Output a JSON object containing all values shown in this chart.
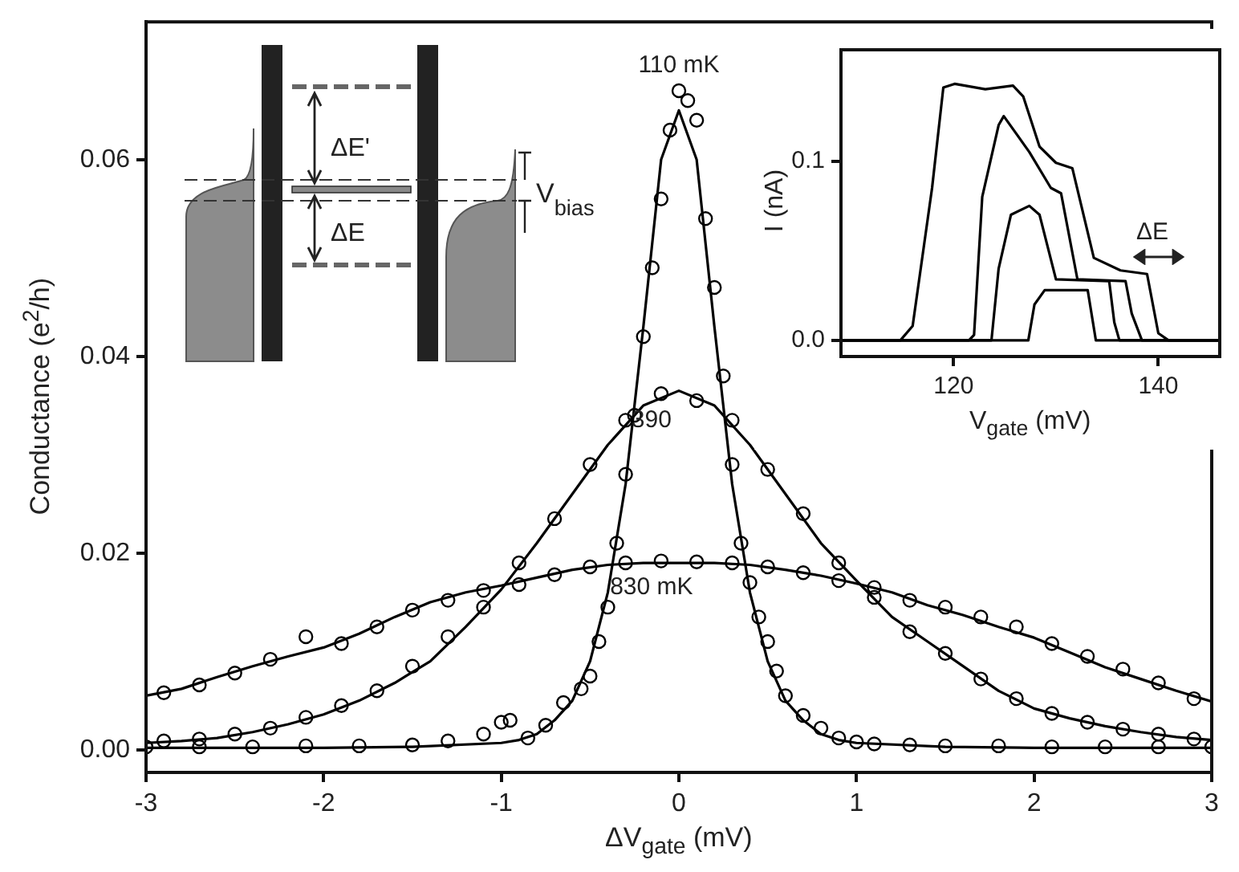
{
  "chart_data": [
    {
      "type": "scatter",
      "xlabel": "ΔV$_{gate}$ (mV)",
      "ylabel": "Conductance (e$^{2}$/h)",
      "xlim": [
        -3,
        3
      ],
      "ylim": [
        -0.0023,
        0.074
      ],
      "xticks": [
        -3,
        -2,
        -1,
        0,
        1,
        2,
        3
      ],
      "yticks": [
        {
          "value": 0,
          "label": "0.00"
        },
        0.02,
        0.04,
        0.06
      ],
      "marker": "circle",
      "line_style": "solid",
      "annotations": [
        "ΔE'",
        "ΔE",
        "V$_{bias}$"
      ],
      "series": [
        {
          "name": "110 mK",
          "type": "scatter",
          "color": "#000000",
          "x": [
            -3,
            -2.7,
            -2.4,
            -2.1,
            -1.8,
            -1.5,
            -1.3,
            -1.1,
            -1,
            -0.95,
            -0.85,
            -0.75,
            -0.65,
            -0.55,
            -0.5,
            -0.45,
            -0.4,
            -0.35,
            -0.3,
            -0.25,
            -0.2,
            -0.15,
            -0.1,
            -0.05,
            0,
            0.05,
            0.1,
            0.15,
            0.2,
            0.25,
            0.3,
            0.35,
            0.4,
            0.45,
            0.5,
            0.55,
            0.6,
            0.7,
            0.8,
            0.9,
            1.0,
            1.1,
            1.3,
            1.5,
            1.8,
            2.1,
            2.4,
            2.7,
            3
          ],
          "values": [
            0.0003,
            0.0003,
            0.0003,
            0.0004,
            0.0004,
            0.0005,
            0.0009,
            0.0016,
            0.0028,
            0.003,
            0.0012,
            0.0025,
            0.0048,
            0.0062,
            0.0075,
            0.011,
            0.0145,
            0.021,
            0.028,
            0.034,
            0.042,
            0.049,
            0.056,
            0.063,
            0.067,
            0.066,
            0.064,
            0.054,
            0.047,
            0.038,
            0.029,
            0.021,
            0.017,
            0.0135,
            0.011,
            0.008,
            0.0055,
            0.0035,
            0.0022,
            0.0012,
            0.0008,
            0.0006,
            0.0005,
            0.0004,
            0.0004,
            0.0003,
            0.0003,
            0.0003,
            0.0003
          ]
        },
        {
          "name": "390",
          "type": "scatter",
          "color": "#000000",
          "x": [
            -2.9,
            -2.7,
            -2.5,
            -2.3,
            -2.1,
            -1.9,
            -1.7,
            -1.5,
            -1.3,
            -1.1,
            -0.9,
            -0.7,
            -0.5,
            -0.3,
            -0.1,
            0.1,
            0.3,
            0.5,
            0.7,
            0.9,
            1.1,
            1.3,
            1.5,
            1.7,
            1.9,
            2.1,
            2.3,
            2.5,
            2.7,
            2.9
          ],
          "values": [
            0.0009,
            0.0011,
            0.0016,
            0.0022,
            0.0033,
            0.0045,
            0.006,
            0.0085,
            0.0115,
            0.0145,
            0.019,
            0.0235,
            0.029,
            0.0335,
            0.0362,
            0.0355,
            0.0335,
            0.0285,
            0.024,
            0.019,
            0.0155,
            0.012,
            0.0098,
            0.0072,
            0.0052,
            0.0037,
            0.0028,
            0.0021,
            0.0016,
            0.0011
          ]
        },
        {
          "name": "830 mK",
          "type": "scatter",
          "color": "#000000",
          "x": [
            -2.9,
            -2.7,
            -2.5,
            -2.3,
            -2.1,
            -1.9,
            -1.7,
            -1.5,
            -1.3,
            -1.1,
            -0.9,
            -0.7,
            -0.5,
            -0.3,
            -0.1,
            0.1,
            0.3,
            0.5,
            0.7,
            0.9,
            1.1,
            1.3,
            1.5,
            1.7,
            1.9,
            2.1,
            2.3,
            2.5,
            2.7,
            2.9
          ],
          "values": [
            0.0058,
            0.0066,
            0.0078,
            0.0092,
            0.0115,
            0.0108,
            0.0125,
            0.0142,
            0.0152,
            0.0162,
            0.0168,
            0.0178,
            0.0186,
            0.019,
            0.0192,
            0.0191,
            0.019,
            0.0186,
            0.018,
            0.0172,
            0.0165,
            0.0152,
            0.0145,
            0.0135,
            0.0125,
            0.0108,
            0.0095,
            0.0082,
            0.0068,
            0.0052
          ]
        },
        {
          "type": "line",
          "marker": "none",
          "color": "#000000",
          "x": [
            -3,
            -2.5,
            -2,
            -1.5,
            -1,
            -0.9,
            -0.8,
            -0.7,
            -0.6,
            -0.5,
            -0.4,
            -0.3,
            -0.2,
            -0.1,
            0,
            0.1,
            0.2,
            0.3,
            0.4,
            0.5,
            0.6,
            0.7,
            0.8,
            0.9,
            1,
            1.5,
            2,
            2.5,
            3
          ],
          "values": [
            0.0002,
            0.0002,
            0.0002,
            0.0003,
            0.0007,
            0.001,
            0.0016,
            0.003,
            0.005,
            0.009,
            0.016,
            0.027,
            0.043,
            0.06,
            0.065,
            0.06,
            0.043,
            0.027,
            0.016,
            0.009,
            0.005,
            0.003,
            0.0016,
            0.001,
            0.0007,
            0.0003,
            0.0002,
            0.0002,
            0.0002
          ]
        },
        {
          "type": "line",
          "marker": "none",
          "color": "#000000",
          "x": [
            -3,
            -2.8,
            -2.6,
            -2.4,
            -2.2,
            -2,
            -1.8,
            -1.6,
            -1.4,
            -1.2,
            -1,
            -0.8,
            -0.6,
            -0.4,
            -0.2,
            0,
            0.2,
            0.4,
            0.6,
            0.8,
            1,
            1.2,
            1.4,
            1.6,
            1.8,
            2,
            2.2,
            2.4,
            2.6,
            2.8,
            3
          ],
          "values": [
            0.0007,
            0.0009,
            0.0012,
            0.0018,
            0.0026,
            0.0036,
            0.005,
            0.0068,
            0.009,
            0.0125,
            0.0163,
            0.021,
            0.026,
            0.031,
            0.035,
            0.0365,
            0.035,
            0.031,
            0.026,
            0.021,
            0.0172,
            0.0135,
            0.011,
            0.0085,
            0.006,
            0.0042,
            0.0032,
            0.0024,
            0.0018,
            0.0013,
            0.001
          ]
        },
        {
          "type": "line",
          "marker": "none",
          "color": "#000000",
          "x": [
            -3,
            -2.8,
            -2.6,
            -2.4,
            -2.2,
            -2,
            -1.8,
            -1.6,
            -1.4,
            -1.2,
            -1,
            -0.8,
            -0.6,
            -0.4,
            -0.2,
            0,
            0.2,
            0.4,
            0.6,
            0.8,
            1,
            1.2,
            1.4,
            1.6,
            1.8,
            2,
            2.2,
            2.4,
            2.6,
            2.8,
            3
          ],
          "values": [
            0.0055,
            0.0062,
            0.0074,
            0.0085,
            0.0095,
            0.0104,
            0.0118,
            0.0135,
            0.015,
            0.016,
            0.0167,
            0.0175,
            0.0183,
            0.0188,
            0.019,
            0.019,
            0.019,
            0.0188,
            0.0183,
            0.0177,
            0.0169,
            0.016,
            0.0147,
            0.0137,
            0.0125,
            0.0114,
            0.0099,
            0.0084,
            0.0072,
            0.006,
            0.0049
          ]
        }
      ]
    },
    {
      "type": "line",
      "xlabel": "V$_{gate}$ (mV)",
      "ylabel": "I (nA)",
      "xlim": [
        109,
        146
      ],
      "ylim": [
        -0.009,
        0.162
      ],
      "xticks": [
        120,
        140
      ],
      "yticks": [
        {
          "value": 0,
          "label": "0.0"
        },
        0.1
      ],
      "marker": "none",
      "line_style": "solid",
      "annotations": [
        "ΔE"
      ],
      "series": [
        {
          "color": "#000000",
          "x": [
            109,
            114.8,
            116,
            117.9,
            119,
            120.1,
            123.1,
            125.8,
            126.8,
            128.4,
            130,
            131.6,
            133.7,
            136.3,
            138.9,
            140,
            141,
            146
          ],
          "values": [
            0,
            0,
            0.008,
            0.085,
            0.141,
            0.143,
            0.14,
            0.142,
            0.136,
            0.108,
            0.099,
            0.096,
            0.046,
            0.039,
            0.037,
            0.004,
            0,
            0
          ]
        },
        {
          "color": "#000000",
          "x": [
            109,
            121.5,
            122,
            122.8,
            124.4,
            124.9,
            127.4,
            129.5,
            130.5,
            132.1,
            136.8,
            137.4,
            138.4,
            146
          ],
          "values": [
            0,
            0,
            0.003,
            0.08,
            0.12,
            0.125,
            0.105,
            0.085,
            0.082,
            0.034,
            0.033,
            0.015,
            0,
            0
          ]
        },
        {
          "color": "#000000",
          "x": [
            109,
            123.7,
            124.4,
            125.6,
            127.4,
            128.4,
            130,
            135.2,
            135.7,
            136.2,
            146
          ],
          "values": [
            0,
            0,
            0.04,
            0.07,
            0.075,
            0.07,
            0.034,
            0.033,
            0.01,
            0,
            0
          ]
        },
        {
          "color": "#000000",
          "x": [
            109,
            127.3,
            127.9,
            128.9,
            133.1,
            133.9,
            146
          ],
          "values": [
            0,
            0,
            0.02,
            0.028,
            0.028,
            0,
            0
          ]
        }
      ]
    }
  ]
}
